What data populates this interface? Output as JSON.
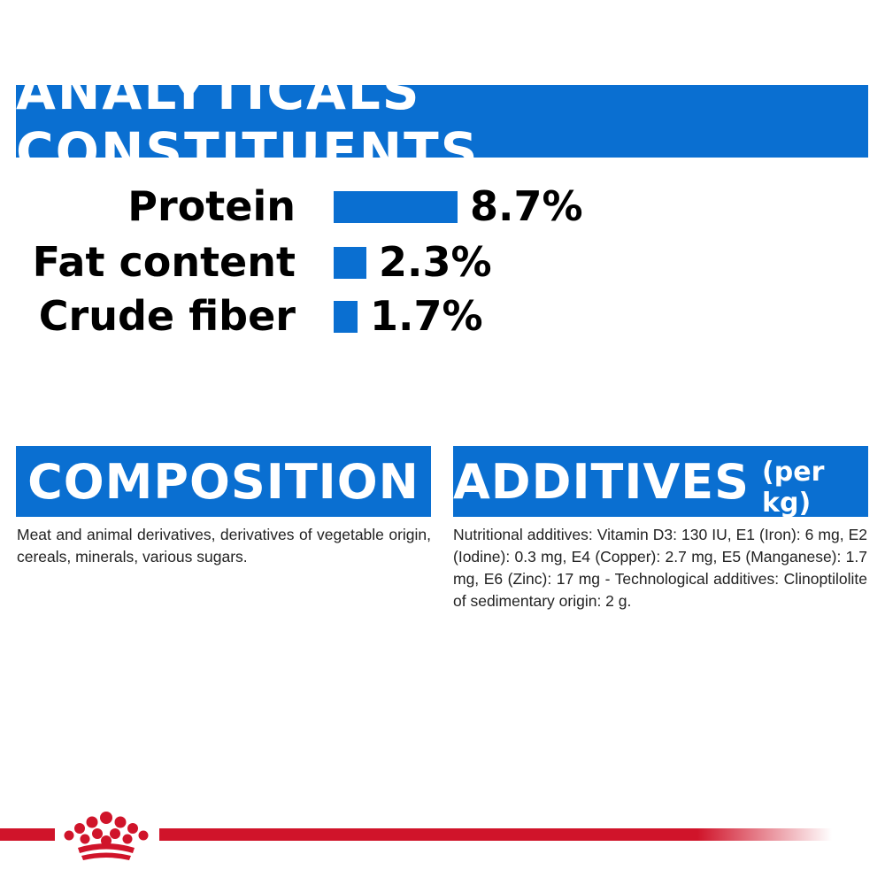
{
  "analyticals": {
    "title": "ANALYTICALS CONSTITUENTS",
    "rows": [
      {
        "label": "Protein",
        "value": "8.7%",
        "percent": 8.7
      },
      {
        "label": "Fat content",
        "value": "2.3%",
        "percent": 2.3
      },
      {
        "label": "Crude fiber",
        "value": "1.7%",
        "percent": 1.7
      }
    ]
  },
  "composition": {
    "title": "COMPOSITION",
    "text": "Meat and animal derivatives, derivatives of vegetable origin, cereals, minerals, various sugars."
  },
  "additives": {
    "title": "ADDITIVES",
    "title_suffix": "(per kg)",
    "text": "Nutritional additives: Vitamin D3: 130 IU, E1 (Iron): 6 mg, E2 (Iodine): 0.3 mg, E4 (Copper): 2.7 mg, E5 (Manganese): 1.7 mg, E6 (Zinc): 17 mg - Technological additives: Clinoptilolite of sedimentary origin: 2 g."
  },
  "colors": {
    "accent_blue": "#0a6fd1",
    "brand_red": "#d0142a"
  },
  "footer": {
    "logo_icon": "royal-canin-crown-icon"
  }
}
